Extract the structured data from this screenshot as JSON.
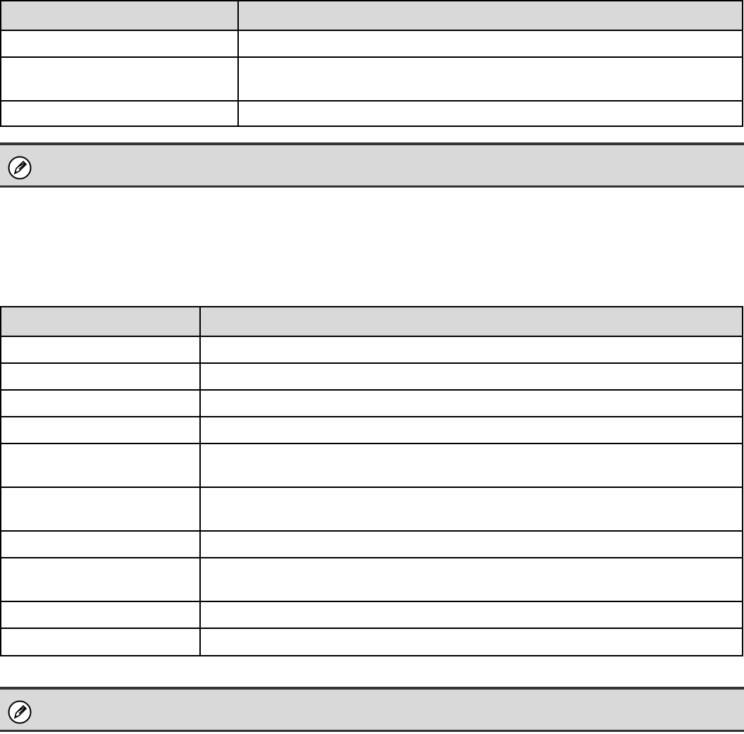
{
  "table1": {
    "headers": [
      "",
      ""
    ],
    "rows": [
      [
        "",
        ""
      ],
      [
        "",
        ""
      ],
      [
        "",
        ""
      ]
    ]
  },
  "note1": {
    "icon": "pencil-note-icon"
  },
  "table2": {
    "headers": [
      "",
      ""
    ],
    "rows": [
      [
        "",
        ""
      ],
      [
        "",
        ""
      ],
      [
        "",
        ""
      ],
      [
        "",
        ""
      ],
      [
        "",
        ""
      ],
      [
        "",
        ""
      ],
      [
        "",
        ""
      ],
      [
        "",
        ""
      ],
      [
        "",
        ""
      ],
      [
        "",
        ""
      ]
    ]
  },
  "note2": {
    "icon": "pencil-note-icon"
  },
  "colors": {
    "header_bg": "#d9d9d9",
    "border": "#000000",
    "note_border": "#333333"
  }
}
